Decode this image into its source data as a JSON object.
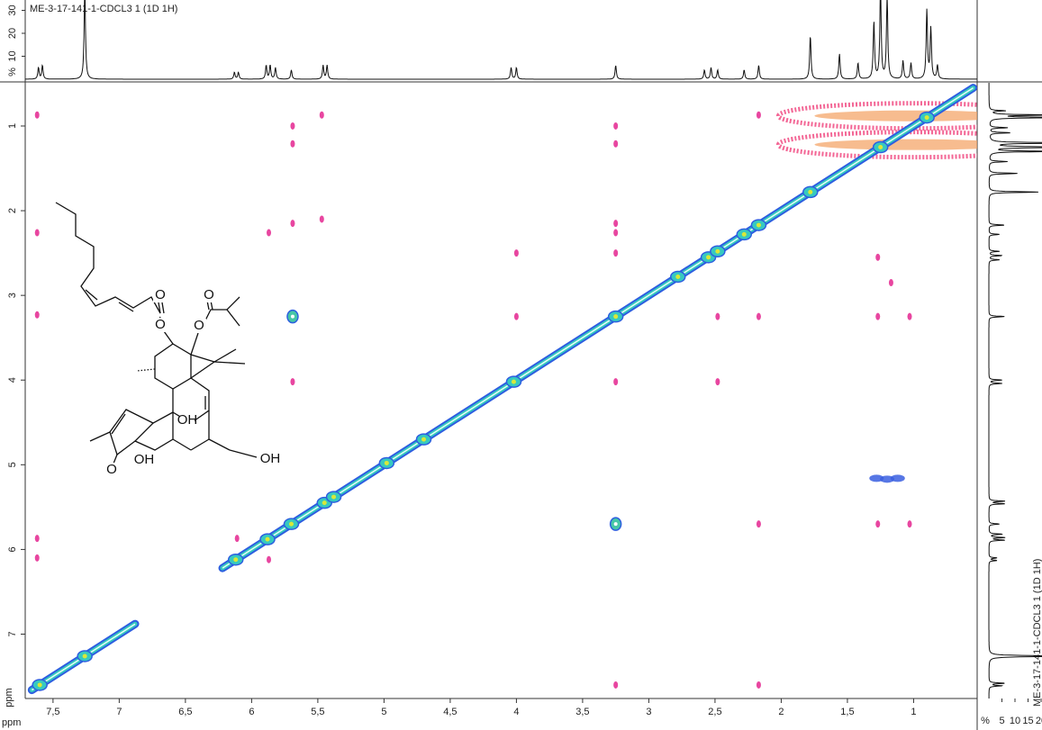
{
  "chart_data": {
    "type": "nmr-2d",
    "title": "ME-3-17-141-1-CDCL3 1 (1D 1H)",
    "side_title": "ME-3-17-141-1-CDCL3 1 (1D 1H)",
    "x_label": "ppm",
    "y_label": "ppm",
    "intensity_label": "%",
    "right_intensity_label": "%",
    "xlim": [
      7.71,
      0.52
    ],
    "ylim": [
      0.49,
      7.76
    ],
    "xticks": [
      {
        "value": 7.5,
        "label": "7,5"
      },
      7,
      {
        "value": 6.5,
        "label": "6,5"
      },
      6,
      {
        "value": 5.5,
        "label": "5,5"
      },
      5,
      {
        "value": 4.5,
        "label": "4,5"
      },
      4,
      {
        "value": 3.5,
        "label": "3,5"
      },
      3,
      {
        "value": 2.5,
        "label": "2,5"
      },
      2,
      {
        "value": 1.5,
        "label": "1,5"
      },
      1
    ],
    "yticks": [
      1,
      2,
      3,
      4,
      5,
      6,
      7
    ],
    "ilim": [
      0,
      34
    ],
    "iticks": [
      10,
      20,
      30
    ],
    "right_ilim": [
      0,
      20
    ],
    "right_iticks": [
      5,
      10,
      15,
      20
    ],
    "spectrum_color": "#111111",
    "peak_ppm": [
      7.61,
      7.58,
      7.26,
      6.13,
      6.1,
      5.89,
      5.86,
      5.82,
      5.7,
      5.46,
      5.43,
      4.04,
      4.0,
      3.25,
      2.58,
      2.53,
      2.48,
      2.28,
      2.17,
      1.78,
      1.56,
      1.42,
      1.3,
      1.25,
      1.2,
      1.08,
      1.02,
      0.9,
      0.87,
      0.82
    ],
    "peak_height": [
      5,
      6,
      40,
      3,
      3,
      6,
      6,
      5,
      4,
      6,
      6,
      5,
      5,
      6,
      4,
      5,
      4,
      4,
      6,
      19,
      11,
      7,
      25,
      40,
      36,
      8,
      7,
      30,
      22,
      6
    ],
    "diagonal_color": "#36c9c0",
    "diagonal_edge_color": "#2d5ee0",
    "diagonal_segments": [
      [
        7.66,
        6.88
      ],
      [
        6.22,
        0.55
      ]
    ],
    "diagonal_peaks": [
      7.6,
      7.26,
      6.12,
      5.88,
      5.7,
      5.45,
      5.38,
      4.98,
      4.7,
      4.02,
      3.25,
      2.78,
      2.55,
      2.48,
      2.28,
      2.17,
      1.78,
      1.25,
      0.9
    ],
    "cross_color": "#e4268f",
    "cross_x": [
      7.62,
      7.62,
      7.62,
      7.62,
      7.62,
      6.11,
      5.87,
      5.87,
      5.69,
      5.69,
      5.69,
      5.69,
      5.47,
      5.47,
      4.0,
      4.0,
      3.25,
      3.25,
      3.25,
      3.25,
      3.25,
      3.25,
      3.25,
      2.48,
      2.48,
      2.17,
      2.17,
      2.17,
      2.17,
      1.27,
      1.27,
      1.27,
      1.03,
      1.03,
      1.17
    ],
    "cross_y": [
      0.87,
      2.26,
      3.23,
      5.87,
      6.1,
      5.87,
      6.12,
      2.26,
      1.0,
      1.21,
      2.15,
      4.02,
      0.87,
      2.1,
      2.5,
      3.25,
      1.0,
      1.21,
      2.15,
      2.26,
      2.5,
      4.02,
      7.6,
      3.25,
      4.02,
      0.87,
      3.25,
      5.7,
      7.6,
      3.25,
      5.7,
      2.55,
      3.25,
      5.7,
      2.85
    ],
    "strong_color": "#46c6a6",
    "strong_x": [
      5.69,
      3.25
    ],
    "strong_y": [
      3.25,
      5.7
    ],
    "blue_color": "#3a5fe0",
    "blue_x": [
      1.28,
      1.2,
      1.12
    ],
    "blue_y": [
      5.16,
      5.17,
      5.16
    ],
    "band_color": "#f0407a",
    "band_x": [
      1.0,
      1.0
    ],
    "band_y": [
      0.88,
      1.22
    ],
    "structure_atoms": [
      "O",
      "O",
      "O",
      "O",
      "OH",
      "O",
      "OH",
      "OH"
    ]
  }
}
